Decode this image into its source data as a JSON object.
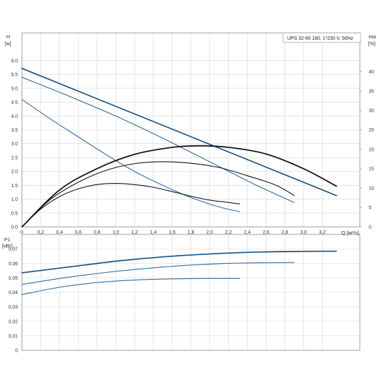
{
  "chart_data": [
    {
      "type": "line",
      "title": "UPS 32-60 180, 1*230 V, 50Hz",
      "ylabel": "H",
      "ylabel_unit": "[м]",
      "y2label": "eta",
      "y2label_unit": "[%]",
      "xlabel": "Q",
      "xlabel_unit": "[м³/ч]",
      "xlim": [
        0,
        3.6
      ],
      "ylim": [
        0,
        7.0
      ],
      "y2lim": [
        0,
        50
      ],
      "x_ticks": [
        "0",
        "0,2",
        "0,4",
        "0,6",
        "0,8",
        "1,0",
        "1,2",
        "1,4",
        "1,6",
        "1,8",
        "2,0",
        "2,2",
        "2,4",
        "2,6",
        "2,8",
        "3,0",
        "3,2"
      ],
      "y_ticks": [
        "0.0",
        "0.5",
        "1.0",
        "1.5",
        "2.0",
        "2.5",
        "3.0",
        "3.5",
        "4.0",
        "4.5",
        "5.0",
        "5.5",
        "6.0"
      ],
      "y2_ticks": [
        "0",
        "5",
        "10",
        "15",
        "20",
        "25",
        "30",
        "35",
        "40"
      ],
      "grid": true,
      "series": [
        {
          "axis": "H",
          "color": "#1f5a8a",
          "x": [
            0,
            3.35
          ],
          "y": [
            5.72,
            1.13
          ]
        },
        {
          "axis": "H",
          "color": "#2a6a9e",
          "x": [
            0,
            0.5,
            1.0,
            1.5,
            2.0,
            2.5,
            2.9
          ],
          "y": [
            5.4,
            4.72,
            4.0,
            3.2,
            2.35,
            1.5,
            0.88
          ]
        },
        {
          "axis": "H",
          "color": "#2a6a9e",
          "x": [
            0,
            0.3,
            0.6,
            0.9,
            1.2,
            1.5,
            1.8,
            2.1,
            2.32
          ],
          "y": [
            4.6,
            3.9,
            3.25,
            2.6,
            2.0,
            1.5,
            1.06,
            0.72,
            0.55
          ]
        },
        {
          "axis": "eta",
          "color": "#111111",
          "x": [
            0,
            0.4,
            0.8,
            1.2,
            1.6,
            1.9,
            2.2,
            2.6,
            3.0,
            3.35
          ],
          "y": [
            0,
            9.5,
            15.0,
            18.7,
            20.5,
            20.9,
            20.5,
            18.8,
            15.0,
            10.5
          ]
        },
        {
          "axis": "eta",
          "color": "#111111",
          "x": [
            0,
            0.3,
            0.6,
            0.9,
            1.2,
            1.5,
            1.8,
            2.1,
            2.4,
            2.7,
            2.9
          ],
          "y": [
            0,
            7.0,
            11.5,
            14.6,
            16.3,
            16.8,
            16.4,
            15.3,
            13.2,
            10.8,
            8.1
          ]
        },
        {
          "axis": "eta",
          "color": "#111111",
          "x": [
            0,
            0.2,
            0.4,
            0.6,
            0.8,
            1.0,
            1.2,
            1.4,
            1.6,
            1.8,
            2.0,
            2.2,
            2.32
          ],
          "y": [
            0,
            4.6,
            7.8,
            9.8,
            10.9,
            11.2,
            10.9,
            10.2,
            9.1,
            7.9,
            6.9,
            6.3,
            5.9
          ]
        }
      ]
    },
    {
      "type": "line",
      "ylabel": "P1",
      "ylabel_unit": "[кВт]",
      "xlim": [
        0,
        3.6
      ],
      "ylim": [
        0,
        0.08
      ],
      "y_ticks": [
        "0",
        "0,01",
        "0,02",
        "0,03",
        "0,04",
        "0,05",
        "0,06",
        "0,07"
      ],
      "grid": true,
      "series": [
        {
          "color": "#1f5a8a",
          "x": [
            0,
            0.5,
            1.0,
            1.5,
            2.0,
            2.5,
            3.0,
            3.35
          ],
          "y": [
            0.0535,
            0.0575,
            0.0615,
            0.0645,
            0.0665,
            0.0678,
            0.0683,
            0.0684
          ]
        },
        {
          "color": "#2a6a9e",
          "x": [
            0,
            0.5,
            1.0,
            1.5,
            2.0,
            2.5,
            2.9
          ],
          "y": [
            0.0455,
            0.0505,
            0.0545,
            0.0575,
            0.0595,
            0.0604,
            0.0606
          ]
        },
        {
          "color": "#2a6a9e",
          "x": [
            0,
            0.4,
            0.8,
            1.2,
            1.6,
            2.0,
            2.32
          ],
          "y": [
            0.0385,
            0.0435,
            0.0468,
            0.0485,
            0.0493,
            0.0496,
            0.0496
          ]
        }
      ]
    }
  ]
}
